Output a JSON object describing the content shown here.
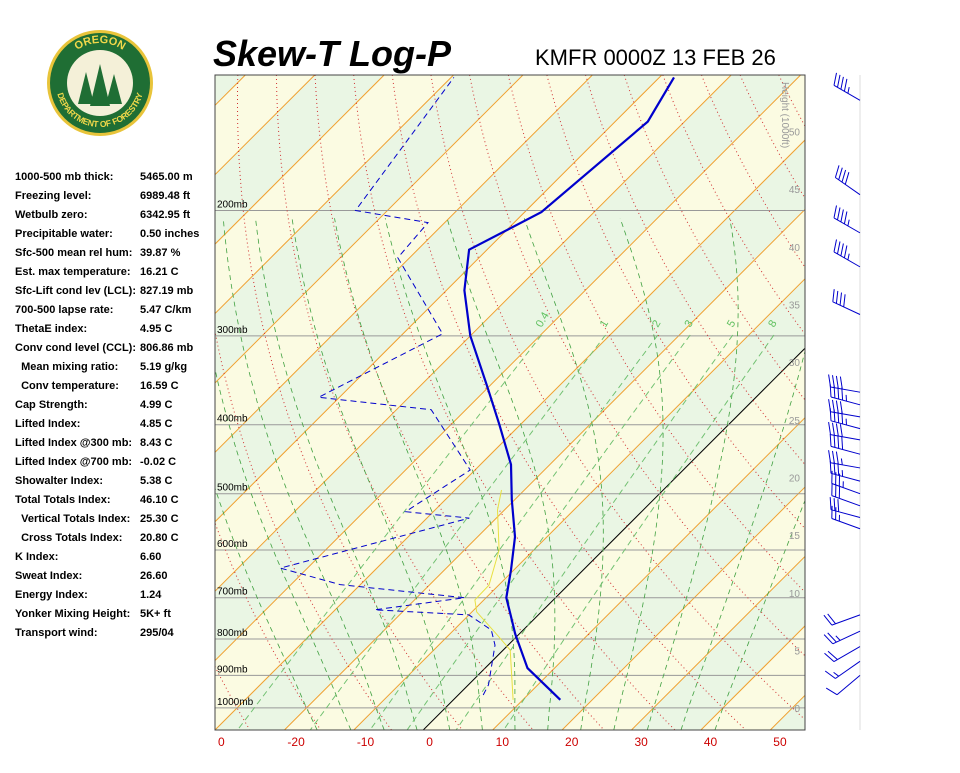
{
  "logo": {
    "top": "OREGON",
    "bottom": "DEPARTMENT OF FORESTRY"
  },
  "indices": [
    {
      "label": "1000-500 mb thick:",
      "value": "5465.00 m"
    },
    {
      "label": "Freezing level:",
      "value": "6989.48 ft"
    },
    {
      "label": "Wetbulb zero:",
      "value": "6342.95 ft"
    },
    {
      "label": "Precipitable water:",
      "value": "0.50 inches"
    },
    {
      "label": "Sfc-500 mean rel hum:",
      "value": "39.87 %"
    },
    {
      "label": "Est. max temperature:",
      "value": "16.21 C"
    },
    {
      "label": "Sfc-Lift cond lev (LCL):",
      "value": "827.19 mb"
    },
    {
      "label": "700-500 lapse rate:",
      "value": "5.47 C/km"
    },
    {
      "label": "ThetaE index:",
      "value": "4.95 C"
    },
    {
      "label": "Conv cond level (CCL):",
      "value": "806.86 mb"
    },
    {
      "label": "  Mean mixing ratio:",
      "value": "5.19 g/kg"
    },
    {
      "label": "  Conv temperature:",
      "value": "16.59 C"
    },
    {
      "label": "Cap Strength:",
      "value": "4.99 C"
    },
    {
      "label": "Lifted Index:",
      "value": "4.85 C"
    },
    {
      "label": "Lifted Index @300 mb:",
      "value": "8.43 C"
    },
    {
      "label": "Lifted Index @700 mb:",
      "value": "-0.02 C"
    },
    {
      "label": "Showalter Index:",
      "value": "5.38 C"
    },
    {
      "label": "Total Totals Index:",
      "value": "46.10 C"
    },
    {
      "label": "  Vertical Totals Index:",
      "value": "25.30 C"
    },
    {
      "label": "  Cross Totals Index:",
      "value": "20.80 C"
    },
    {
      "label": "K Index:",
      "value": "6.60"
    },
    {
      "label": "Sweat Index:",
      "value": "26.60"
    },
    {
      "label": "Energy Index:",
      "value": "1.24"
    },
    {
      "label": "Yonker Mixing Height:",
      "value": "5K+ ft"
    },
    {
      "label": "Transport wind:",
      "value": "295/04"
    }
  ],
  "chart_data": {
    "type": "skewt",
    "title": "Skew-T Log-P",
    "subtitle": "KMFR 0000Z 13 FEB 26",
    "xlim": [
      -30,
      55
    ],
    "xticks": [
      {
        "value": -30,
        "label": "0"
      },
      -20,
      -10,
      0,
      10,
      20,
      30,
      40,
      50
    ],
    "ylim": [
      1074,
      129
    ],
    "log_y": true,
    "yticks": [
      {
        "value": 1000,
        "label": "1000mb"
      },
      {
        "value": 900,
        "label": "900mb"
      },
      {
        "value": 800,
        "label": "800mb"
      },
      {
        "value": 700,
        "label": "700mb"
      },
      {
        "value": 600,
        "label": "600mb"
      },
      {
        "value": 500,
        "label": "500mb"
      },
      {
        "value": 400,
        "label": "400mb"
      },
      {
        "value": 300,
        "label": "300mb"
      },
      {
        "value": 200,
        "label": "200mb"
      }
    ],
    "y2label": "Height (1000ft)",
    "y2lim": [
      -1.9,
      54.9
    ],
    "y2ticks": [
      0,
      5,
      10,
      15,
      20,
      25,
      30,
      35,
      40,
      45,
      50
    ],
    "mixing_ratios": [
      0.4,
      1,
      2,
      3,
      5,
      8
    ],
    "series": [
      {
        "color": "#0000cc",
        "style": "solid",
        "pressure": [
          974,
          879,
          787,
          740,
          700,
          640,
          575,
          510,
          455,
          400,
          355,
          300,
          259,
          227,
          201,
          150,
          130
        ],
        "temperature": [
          15.4,
          6.1,
          -0.6,
          -4.0,
          -7.1,
          -10.4,
          -14.6,
          -20.4,
          -25.6,
          -33,
          -40,
          -50,
          -57.4,
          -62.6,
          -57.6,
          -55.3,
          -57.9
        ]
      },
      {
        "color": "#0000cc",
        "style": "dashed",
        "pressure": [
          959,
          928,
          816,
          777,
          740,
          728,
          700,
          671,
          636,
          541,
          530,
          463,
          381,
          366,
          298,
          233,
          208,
          200,
          130
        ],
        "temperature": [
          3.6,
          2.9,
          -1.9,
          -4.6,
          -10,
          -24.3,
          -13.1,
          -32.9,
          -43.9,
          -23.9,
          -34,
          -30.7,
          -45,
          -63,
          -54.3,
          -71.7,
          -72.4,
          -84.6,
          -89.6
        ]
      },
      {
        "color": "#e8e040",
        "style": "solid",
        "pressure": [
          974,
          829,
          789,
          733,
          705,
          672,
          600,
          527,
          494
        ],
        "temperature": [
          8.6,
          1.0,
          -3.1,
          -9.3,
          -11.3,
          -11.4,
          -15,
          -21,
          -23.3
        ]
      }
    ],
    "winds": {
      "pressure": [
        140,
        190,
        215,
        240,
        280,
        360,
        375,
        390,
        405,
        420,
        440,
        460,
        480,
        500,
        520,
        540,
        560,
        740,
        780,
        820,
        860,
        900
      ],
      "direction": [
        300,
        305,
        300,
        300,
        295,
        280,
        285,
        280,
        285,
        280,
        285,
        280,
        285,
        290,
        290,
        285,
        290,
        250,
        245,
        240,
        235,
        230
      ],
      "speed": [
        45,
        40,
        45,
        45,
        40,
        40,
        45,
        40,
        45,
        40,
        40,
        35,
        35,
        35,
        30,
        30,
        25,
        20,
        25,
        20,
        15,
        10
      ]
    }
  }
}
